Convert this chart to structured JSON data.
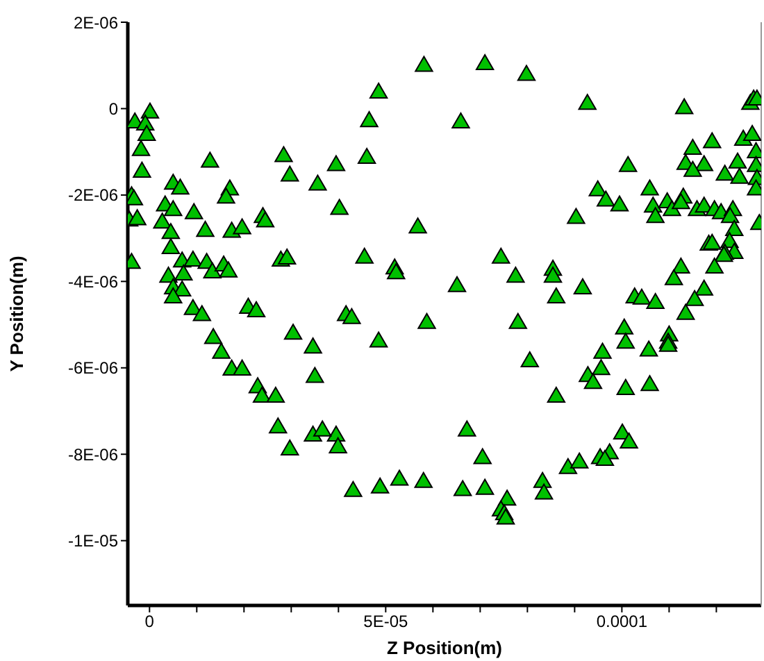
{
  "chart_data": {
    "type": "scatter",
    "xlabel": "Z Position(m)",
    "ylabel": "Y Position(m)",
    "marker": "triangle",
    "grid": false,
    "xlim": [
      -4.6e-06,
      0.0001295
    ],
    "ylim": [
      -1.15e-05,
      2e-06
    ],
    "xticks": [
      {
        "value": 0,
        "label": "0"
      },
      {
        "value": 1e-05,
        "label": null
      },
      {
        "value": 2e-05,
        "label": null
      },
      {
        "value": 3e-05,
        "label": null
      },
      {
        "value": 4e-05,
        "label": null
      },
      {
        "value": 5e-05,
        "label": "5E-05"
      },
      {
        "value": 6e-05,
        "label": null
      },
      {
        "value": 7e-05,
        "label": null
      },
      {
        "value": 8e-05,
        "label": null
      },
      {
        "value": 9e-05,
        "label": null
      },
      {
        "value": 0.0001,
        "label": "0.0001"
      },
      {
        "value": 0.00011,
        "label": null
      },
      {
        "value": 0.00012,
        "label": null
      }
    ],
    "yticks": [
      {
        "value": 2e-06,
        "label": "2E-06"
      },
      {
        "value": 0,
        "label": "0"
      },
      {
        "value": -2e-06,
        "label": "-2E-06"
      },
      {
        "value": -4e-06,
        "label": "-4E-06"
      },
      {
        "value": -6e-06,
        "label": "-6E-06"
      },
      {
        "value": -8e-06,
        "label": "-8E-06"
      },
      {
        "value": -1e-05,
        "label": "-1E-05"
      }
    ],
    "series": [
      {
        "color": "#00c000",
        "x": [
          1e-07,
          -3.1e-06,
          -9e-07,
          -6e-07,
          -1.8e-06,
          -1.6e-06,
          1.28e-05,
          2.84e-05,
          2.97e-05,
          3.95e-05,
          3.56e-05,
          4.02e-05,
          5e-06,
          6.5e-06,
          1.7e-05,
          1.62e-05,
          -3.8e-06,
          -3.3e-06,
          3.3e-06,
          5e-06,
          9.4e-06,
          -4.3e-06,
          -2.6e-06,
          2.7e-06,
          2.4e-05,
          2.45e-05,
          4.5e-06,
          1.18e-05,
          1.74e-05,
          1.96e-05,
          4.5e-06,
          -3.8e-06,
          6.9e-06,
          9.2e-06,
          1.21e-05,
          1.33e-05,
          1.57e-05,
          1.67e-05,
          2.78e-05,
          2.91e-05,
          4e-06,
          7.2e-06,
          5e-06,
          6.9e-06,
          5.81e-05,
          7.1e-05,
          7.98e-05,
          4.85e-05,
          4.65e-05,
          6.59e-05,
          4.6e-05,
          5.68e-05,
          4.55e-05,
          5.19e-05,
          5.22e-05,
          7.44e-05,
          7.75e-05,
          6.51e-05,
          8.54e-05,
          8.54e-05,
          9.27e-05,
          0.0001132,
          0.0001272,
          0.0001279,
          0.0001286,
          0.0001191,
          0.000115,
          0.0001257,
          0.0001276,
          0.0001284,
          0.0001013,
          0.0001135,
          0.0001174,
          0.000115,
          0.0001245,
          0.0001218,
          0.0001249,
          0.0001284,
          0.0001286,
          0.0001284,
          9.49e-05,
          9.66e-05,
          9.95e-05,
          9.03e-05,
          0.0001059,
          0.0001066,
          0.0001071,
          0.0001096,
          0.0001106,
          0.000113,
          0.0001125,
          0.0001159,
          0.0001174,
          0.0001196,
          0.000121,
          0.0001235,
          0.0001229,
          0.0001291,
          0.0001238,
          0.0001184,
          0.0001191,
          0.0001228,
          0.0001238,
          0.0001218,
          0.0001216,
          0.0001196,
          0.0001125,
          0.000111,
          9.17e-05,
          0.0001174,
          8.61e-05,
          0.0001027,
          0.0001042,
          0.0001071,
          0.0001154,
          0.0001135,
          0.0001005,
          0.0001008,
          0.0001057,
          0.00011,
          0.0001098,
          0.0001098,
          9.59e-05,
          9.56e-05,
          9.28e-05,
          9.39e-05,
          0.0001008,
          0.0001059,
          8.61e-05,
          0.0001001,
          0.0001015,
          9.74e-05,
          9.54e-05,
          9.64e-05,
          8.86e-05,
          9.1e-05,
          8.32e-05,
          8.35e-05,
          4.16e-05,
          4.28e-05,
          5.87e-05,
          7.8e-05,
          4.85e-05,
          8.05e-05,
          6.72e-05,
          7.05e-05,
          3.95e-05,
          3.99e-05,
          4.31e-05,
          4.88e-05,
          5.29e-05,
          5.8e-05,
          6.63e-05,
          7.1e-05,
          7.57e-05,
          7.44e-05,
          7.51e-05,
          7.54e-05,
          5e-06,
          9.2e-06,
          1.11e-05,
          2.09e-05,
          2.26e-05,
          3.04e-05,
          3.46e-05,
          3.5e-05,
          1.35e-05,
          1.52e-05,
          1.74e-05,
          1.96e-05,
          2.29e-05,
          2.38e-05,
          2.67e-05,
          2.72e-05,
          2.97e-05,
          3.46e-05,
          3.66e-05
        ],
        "values": [
          -1e-07,
          -3.3e-07,
          -3.8e-07,
          -6.2e-07,
          -9.7e-07,
          -1.47e-06,
          -1.24e-06,
          -1.11e-06,
          -1.56e-06,
          -1.32e-06,
          -1.77e-06,
          -2.33e-06,
          -1.75e-06,
          -1.86e-06,
          -1.88e-06,
          -2.07e-06,
          -2.04e-06,
          -2.11e-06,
          -2.25e-06,
          -2.36e-06,
          -2.43e-06,
          -2.6e-06,
          -2.57e-06,
          -2.65e-06,
          -2.52e-06,
          -2.62e-06,
          -2.89e-06,
          -2.84e-06,
          -2.86e-06,
          -2.78e-06,
          -3.24e-06,
          -3.58e-06,
          -3.55e-06,
          -3.53e-06,
          -3.58e-06,
          -3.8e-06,
          -3.64e-06,
          -3.78e-06,
          -3.53e-06,
          -3.48e-06,
          -3.9e-06,
          -3.85e-06,
          -4.17e-06,
          -4.22e-06,
          9.8e-07,
          1.02e-06,
          7.7e-07,
          3.6e-07,
          -3e-07,
          -3.3e-07,
          -1.15e-06,
          -2.76e-06,
          -3.46e-06,
          -3.71e-06,
          -3.82e-06,
          -3.46e-06,
          -3.9e-06,
          -4.12e-06,
          -3.74e-06,
          -3.9e-06,
          1e-07,
          0,
          1e-07,
          2e-07,
          2e-07,
          -7.9e-07,
          -9.4e-07,
          -7.3e-07,
          -6.2e-07,
          -1.02e-06,
          -1.34e-06,
          -1.29e-06,
          -1.32e-06,
          -1.45e-06,
          -1.26e-06,
          -1.54e-06,
          -1.61e-06,
          -1.34e-06,
          -1.64e-06,
          -1.88e-06,
          -1.9e-06,
          -2.14e-06,
          -2.25e-06,
          -2.54e-06,
          -1.88e-06,
          -2.28e-06,
          -2.52e-06,
          -2.18e-06,
          -2.36e-06,
          -2.07e-06,
          -2.2e-06,
          -2.36e-06,
          -2.28e-06,
          -2.36e-06,
          -2.43e-06,
          -2.36e-06,
          -2.52e-06,
          -2.68e-06,
          -2.82e-06,
          -3.16e-06,
          -3.14e-06,
          -3.1e-06,
          -3.35e-06,
          -3.37e-06,
          -3.42e-06,
          -3.69e-06,
          -3.69e-06,
          -3.96e-06,
          -4.17e-06,
          -4.2e-06,
          -4.38e-06,
          -4.38e-06,
          -4.41e-06,
          -4.51e-06,
          -4.44e-06,
          -4.76e-06,
          -5.1e-06,
          -5.43e-06,
          -5.61e-06,
          -5.26e-06,
          -5.43e-06,
          -5.5e-06,
          -5.66e-06,
          -6.04e-06,
          -6.2e-06,
          -6.36e-06,
          -6.5e-06,
          -6.41e-06,
          -6.68e-06,
          -7.53e-06,
          -7.74e-06,
          -7.99e-06,
          -8.1e-06,
          -8.14e-06,
          -8.33e-06,
          -8.2e-06,
          -8.65e-06,
          -8.92e-06,
          -4.79e-06,
          -4.86e-06,
          -4.97e-06,
          -4.97e-06,
          -5.4e-06,
          -5.86e-06,
          -7.46e-06,
          -8.1e-06,
          -7.58e-06,
          -7.85e-06,
          -8.86e-06,
          -8.78e-06,
          -8.6e-06,
          -8.65e-06,
          -8.84e-06,
          -8.81e-06,
          -9.06e-06,
          -9.31e-06,
          -9.4e-06,
          -9.5e-06,
          -4.38e-06,
          -4.65e-06,
          -4.79e-06,
          -4.62e-06,
          -4.7e-06,
          -5.22e-06,
          -5.54e-06,
          -6.22e-06,
          -5.32e-06,
          -5.66e-06,
          -6.05e-06,
          -6.05e-06,
          -6.46e-06,
          -6.68e-06,
          -6.68e-06,
          -7.39e-06,
          -7.9e-06,
          -7.58e-06,
          -7.46e-06
        ]
      }
    ]
  }
}
